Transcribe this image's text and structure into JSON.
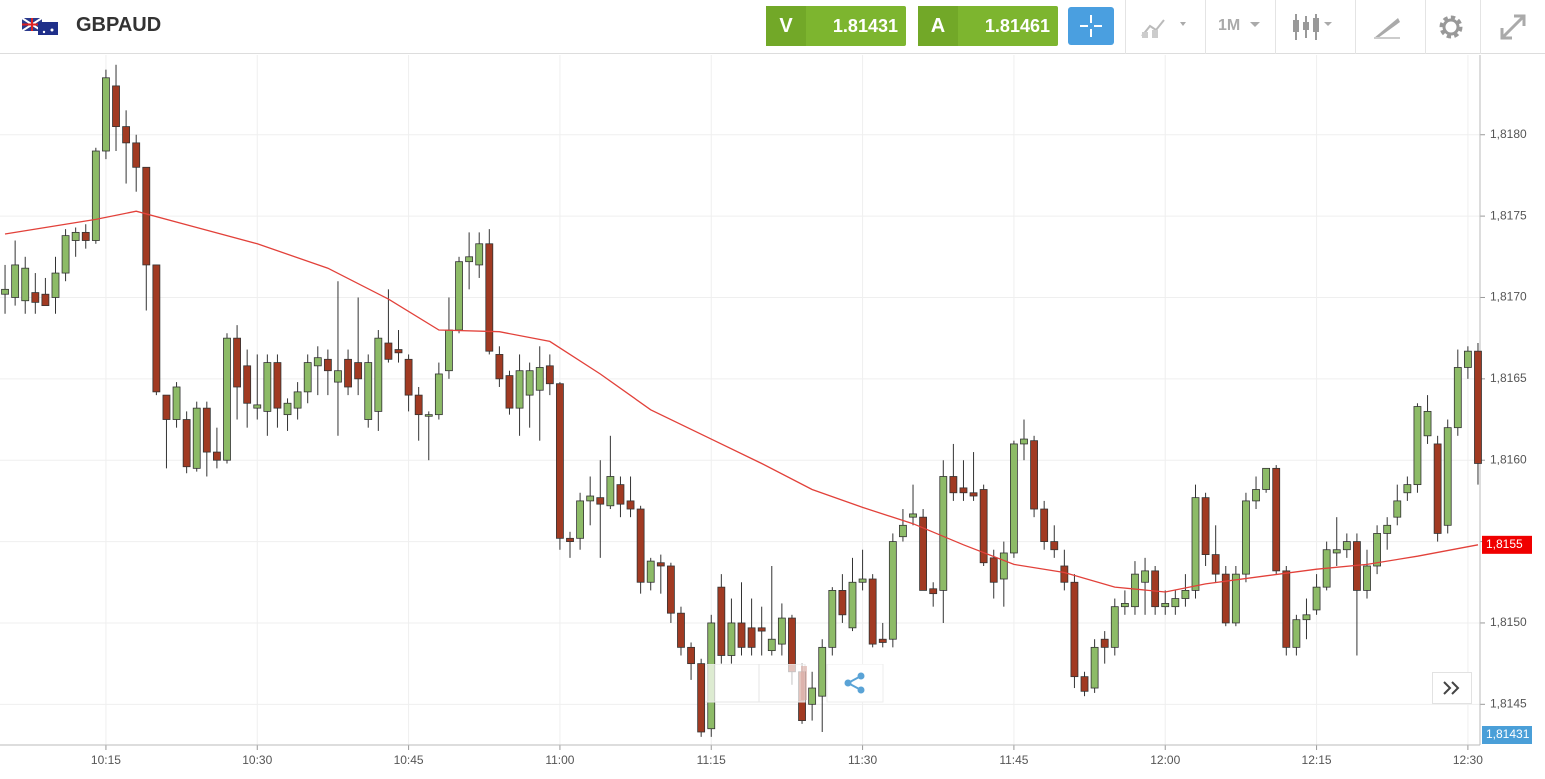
{
  "toolbar": {
    "bid_label": "V",
    "bid": 1.81431,
    "ask_label": "A",
    "ask": 1.81461,
    "timeframe": "1M"
  },
  "chart_data": {
    "type": "candlestick",
    "title": "GBPAUD",
    "up_color": "#8dbb67",
    "down_color": "#a13a22",
    "grid": true,
    "xlim": [
      604.5,
      751.2
    ],
    "ylim": [
      1.81425,
      1.81849
    ],
    "xticks": [
      {
        "value": 615,
        "label": "10:15"
      },
      {
        "value": 630,
        "label": "10:30"
      },
      {
        "value": 645,
        "label": "10:45"
      },
      {
        "value": 660,
        "label": "11:00"
      },
      {
        "value": 675,
        "label": "11:15"
      },
      {
        "value": 690,
        "label": "11:30"
      },
      {
        "value": 705,
        "label": "11:45"
      },
      {
        "value": 720,
        "label": "12:00"
      },
      {
        "value": 735,
        "label": "12:15"
      },
      {
        "value": 750,
        "label": "12:30"
      }
    ],
    "yticks": [
      {
        "value": 1.8145,
        "label": "1,8145"
      },
      {
        "value": 1.815,
        "label": "1,8150"
      },
      {
        "value": 1.8155,
        "label": "1,8155"
      },
      {
        "value": 1.816,
        "label": "1,8160"
      },
      {
        "value": 1.8165,
        "label": "1,8165"
      },
      {
        "value": 1.817,
        "label": "1,8170"
      },
      {
        "value": 1.8175,
        "label": "1,8175"
      },
      {
        "value": 1.818,
        "label": "1,8180"
      }
    ],
    "x": [
      605,
      606,
      607,
      608,
      609,
      610,
      611,
      612,
      613,
      614,
      615,
      616,
      617,
      618,
      619,
      620,
      621,
      622,
      623,
      624,
      625,
      626,
      627,
      628,
      629,
      630,
      631,
      632,
      633,
      634,
      635,
      636,
      637,
      638,
      639,
      640,
      641,
      642,
      643,
      644,
      645,
      646,
      647,
      648,
      649,
      650,
      651,
      652,
      653,
      654,
      655,
      656,
      657,
      658,
      659,
      660,
      661,
      662,
      663,
      664,
      665,
      666,
      667,
      668,
      669,
      670,
      671,
      672,
      673,
      674,
      675,
      676,
      677,
      678,
      679,
      680,
      681,
      682,
      683,
      684,
      685,
      686,
      687,
      688,
      689,
      690,
      691,
      692,
      693,
      694,
      695,
      696,
      697,
      698,
      699,
      700,
      701,
      702,
      703,
      704,
      705,
      706,
      707,
      708,
      709,
      710,
      711,
      712,
      713,
      714,
      715,
      716,
      717,
      718,
      719,
      720,
      721,
      722,
      723,
      724,
      725,
      726,
      727,
      728,
      729,
      730,
      731,
      732,
      733,
      734,
      735,
      736,
      737,
      738,
      739,
      740,
      741,
      742,
      743,
      744,
      745,
      746,
      747,
      748,
      749,
      750,
      751
    ],
    "open": [
      1.81702,
      1.817,
      1.81698,
      1.81703,
      1.81702,
      1.817,
      1.81715,
      1.81735,
      1.8174,
      1.81735,
      1.8179,
      1.8183,
      1.81805,
      1.81795,
      1.8178,
      1.8172,
      1.8164,
      1.81625,
      1.81625,
      1.81595,
      1.81632,
      1.81605,
      1.816,
      1.81675,
      1.81658,
      1.81632,
      1.8163,
      1.8166,
      1.81628,
      1.81632,
      1.81642,
      1.81658,
      1.81662,
      1.81648,
      1.81662,
      1.8166,
      1.81625,
      1.8163,
      1.81672,
      1.81668,
      1.81662,
      1.8164,
      1.81627,
      1.81628,
      1.81655,
      1.8168,
      1.81722,
      1.8172,
      1.81733,
      1.81665,
      1.81652,
      1.81632,
      1.8164,
      1.81643,
      1.81658,
      1.81647,
      1.81552,
      1.81552,
      1.81575,
      1.81577,
      1.81572,
      1.81585,
      1.81575,
      1.8157,
      1.81525,
      1.81537,
      1.81535,
      1.81506,
      1.81485,
      1.81475,
      1.81435,
      1.81522,
      1.8148,
      1.815,
      1.81497,
      1.81497,
      1.81483,
      1.81487,
      1.81503,
      1.8147,
      1.8145,
      1.81455,
      1.81485,
      1.8152,
      1.81497,
      1.81525,
      1.81527,
      1.8149,
      1.8149,
      1.81553,
      1.81565,
      1.81565,
      1.81521,
      1.8152,
      1.8159,
      1.81583,
      1.8158,
      1.81582,
      1.8154,
      1.81527,
      1.81543,
      1.8161,
      1.81612,
      1.8157,
      1.8155,
      1.81535,
      1.81525,
      1.81467,
      1.8146,
      1.8149,
      1.81485,
      1.8151,
      1.8151,
      1.81525,
      1.81532,
      1.8151,
      1.8151,
      1.81515,
      1.8152,
      1.81577,
      1.81542,
      1.8153,
      1.815,
      1.8153,
      1.81575,
      1.81582,
      1.81595,
      1.81532,
      1.81485,
      1.81502,
      1.81508,
      1.81522,
      1.81543,
      1.81545,
      1.8155,
      1.8152,
      1.81535,
      1.81555,
      1.81565,
      1.8158,
      1.81585,
      1.81615,
      1.8161,
      1.8156,
      1.8162,
      1.81657,
      1.81667
    ],
    "high": [
      1.8172,
      1.81735,
      1.81725,
      1.81715,
      1.81712,
      1.81725,
      1.81742,
      1.81743,
      1.81745,
      1.81792,
      1.8184,
      1.81843,
      1.81815,
      1.818,
      1.8178,
      1.8172,
      1.8164,
      1.81648,
      1.8163,
      1.81636,
      1.81636,
      1.8162,
      1.81678,
      1.81683,
      1.81668,
      1.81665,
      1.81665,
      1.81665,
      1.81638,
      1.81648,
      1.81665,
      1.8167,
      1.81668,
      1.8171,
      1.81668,
      1.817,
      1.81665,
      1.8168,
      1.81705,
      1.8168,
      1.81665,
      1.81645,
      1.8163,
      1.8166,
      1.817,
      1.81725,
      1.8174,
      1.8174,
      1.81742,
      1.8167,
      1.81655,
      1.81665,
      1.8166,
      1.8167,
      1.81665,
      1.81648,
      1.81556,
      1.8158,
      1.8159,
      1.816,
      1.81615,
      1.8159,
      1.8159,
      1.81572,
      1.8154,
      1.81542,
      1.81537,
      1.8151,
      1.81488,
      1.81478,
      1.81505,
      1.8153,
      1.81515,
      1.81525,
      1.81515,
      1.8151,
      1.81535,
      1.81512,
      1.81505,
      1.81475,
      1.8147,
      1.8149,
      1.81522,
      1.8153,
      1.8154,
      1.81545,
      1.8153,
      1.815,
      1.81555,
      1.8157,
      1.81585,
      1.8157,
      1.81525,
      1.816,
      1.8161,
      1.816,
      1.81605,
      1.81585,
      1.81545,
      1.8155,
      1.81612,
      1.81625,
      1.81615,
      1.81575,
      1.8156,
      1.81545,
      1.8153,
      1.8147,
      1.8149,
      1.81495,
      1.81515,
      1.8152,
      1.81538,
      1.8154,
      1.81535,
      1.8152,
      1.8152,
      1.8153,
      1.81585,
      1.8158,
      1.8156,
      1.81535,
      1.81535,
      1.8158,
      1.8159,
      1.81595,
      1.81597,
      1.81535,
      1.81505,
      1.81515,
      1.8153,
      1.8155,
      1.81565,
      1.81555,
      1.81555,
      1.81545,
      1.8156,
      1.81565,
      1.81585,
      1.8159,
      1.81635,
      1.8164,
      1.81615,
      1.81625,
      1.81668,
      1.8167,
      1.81672
    ],
    "low": [
      1.8169,
      1.81695,
      1.8169,
      1.8169,
      1.81695,
      1.8169,
      1.8171,
      1.81725,
      1.8173,
      1.81733,
      1.81785,
      1.8179,
      1.8177,
      1.81765,
      1.81692,
      1.8164,
      1.81595,
      1.8162,
      1.81592,
      1.81593,
      1.8159,
      1.81595,
      1.81598,
      1.81625,
      1.8162,
      1.81625,
      1.81615,
      1.8162,
      1.81618,
      1.81625,
      1.81635,
      1.8164,
      1.8164,
      1.81615,
      1.8164,
      1.8164,
      1.8162,
      1.81618,
      1.8166,
      1.8166,
      1.8163,
      1.81612,
      1.816,
      1.81625,
      1.8165,
      1.81678,
      1.81705,
      1.81712,
      1.81665,
      1.81645,
      1.81628,
      1.81615,
      1.8162,
      1.81612,
      1.8164,
      1.81545,
      1.8154,
      1.81545,
      1.8156,
      1.8154,
      1.8157,
      1.81565,
      1.81565,
      1.81518,
      1.8152,
      1.81518,
      1.815,
      1.8148,
      1.81465,
      1.8143,
      1.8143,
      1.81475,
      1.81475,
      1.8148,
      1.8148,
      1.8148,
      1.8148,
      1.8148,
      1.81462,
      1.81438,
      1.8144,
      1.81433,
      1.8148,
      1.815,
      1.81495,
      1.8152,
      1.81485,
      1.81485,
      1.81485,
      1.8155,
      1.8156,
      1.8152,
      1.8151,
      1.815,
      1.81575,
      1.81575,
      1.81575,
      1.81535,
      1.81515,
      1.8151,
      1.8154,
      1.816,
      1.81565,
      1.81545,
      1.8154,
      1.8152,
      1.8146,
      1.81455,
      1.81457,
      1.81475,
      1.8148,
      1.81505,
      1.81505,
      1.81505,
      1.81505,
      1.81505,
      1.81505,
      1.8151,
      1.81515,
      1.81535,
      1.81525,
      1.81498,
      1.81498,
      1.81525,
      1.8157,
      1.8158,
      1.8153,
      1.8148,
      1.8148,
      1.8149,
      1.81505,
      1.8152,
      1.81535,
      1.8154,
      1.8148,
      1.81515,
      1.8153,
      1.81545,
      1.8156,
      1.81575,
      1.8158,
      1.8161,
      1.8155,
      1.81555,
      1.81615,
      1.8165,
      1.81585
    ],
    "close": [
      1.81705,
      1.8172,
      1.81718,
      1.81697,
      1.81695,
      1.81715,
      1.81738,
      1.8174,
      1.81735,
      1.8179,
      1.81835,
      1.81805,
      1.81795,
      1.8178,
      1.8172,
      1.81642,
      1.81625,
      1.81645,
      1.81596,
      1.81632,
      1.81605,
      1.816,
      1.81675,
      1.81645,
      1.81635,
      1.81634,
      1.8166,
      1.81632,
      1.81635,
      1.81642,
      1.8166,
      1.81663,
      1.81655,
      1.81655,
      1.81645,
      1.8165,
      1.8166,
      1.81675,
      1.81662,
      1.81666,
      1.8164,
      1.81628,
      1.81628,
      1.81653,
      1.8168,
      1.81722,
      1.81725,
      1.81733,
      1.81667,
      1.8165,
      1.81632,
      1.81655,
      1.81655,
      1.81657,
      1.81647,
      1.81552,
      1.8155,
      1.81575,
      1.81578,
      1.81573,
      1.8159,
      1.81573,
      1.8157,
      1.81525,
      1.81538,
      1.81535,
      1.81506,
      1.81485,
      1.81475,
      1.81433,
      1.815,
      1.8148,
      1.815,
      1.81485,
      1.81485,
      1.81495,
      1.8149,
      1.81503,
      1.8147,
      1.8144,
      1.8146,
      1.81485,
      1.8152,
      1.81505,
      1.81525,
      1.81527,
      1.81487,
      1.81488,
      1.8155,
      1.8156,
      1.81567,
      1.8152,
      1.81518,
      1.8159,
      1.8158,
      1.8158,
      1.81578,
      1.81537,
      1.81525,
      1.81543,
      1.8161,
      1.81613,
      1.8157,
      1.8155,
      1.81545,
      1.81525,
      1.81467,
      1.81458,
      1.81485,
      1.81485,
      1.8151,
      1.81512,
      1.8153,
      1.81532,
      1.8151,
      1.81512,
      1.81515,
      1.8152,
      1.81577,
      1.81542,
      1.8153,
      1.815,
      1.8153,
      1.81575,
      1.81582,
      1.81595,
      1.81532,
      1.81485,
      1.81502,
      1.81505,
      1.81522,
      1.81545,
      1.81545,
      1.8155,
      1.8152,
      1.81535,
      1.81555,
      1.8156,
      1.81575,
      1.81585,
      1.81633,
      1.8163,
      1.81555,
      1.8162,
      1.81657,
      1.81667,
      1.81598
    ],
    "overlay": {
      "color": "#e2413a",
      "x": [
        605,
        614,
        618,
        624,
        630,
        637,
        643,
        648,
        654,
        659,
        664,
        669,
        675,
        680,
        685,
        690,
        695,
        700,
        705,
        710,
        715,
        720,
        724,
        730,
        735,
        740,
        745,
        751
      ],
      "values": [
        1.81739,
        1.81748,
        1.81753,
        1.81743,
        1.81733,
        1.81718,
        1.81699,
        1.8168,
        1.81679,
        1.81673,
        1.81653,
        1.81631,
        1.81613,
        1.81598,
        1.81582,
        1.81571,
        1.81561,
        1.81548,
        1.81536,
        1.81531,
        1.81522,
        1.81519,
        1.81524,
        1.81529,
        1.81533,
        1.81536,
        1.81541,
        1.81548
      ]
    },
    "price_labels": [
      {
        "value": 1.81548,
        "label": "1,8155",
        "color": "#f00000"
      },
      {
        "value": 1.81431,
        "label": "1,81431",
        "color": "#4a9fd8"
      }
    ]
  }
}
